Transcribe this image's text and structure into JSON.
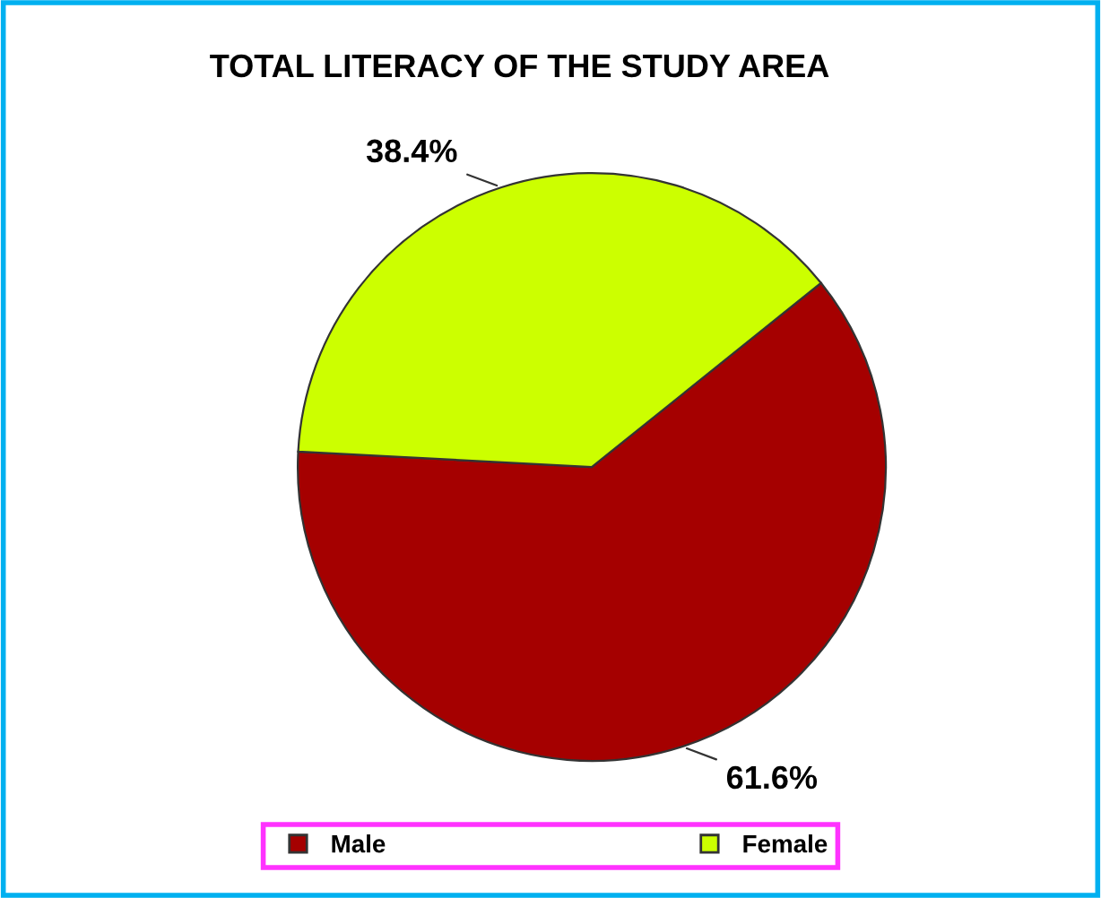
{
  "chart_data": {
    "type": "pie",
    "title": "TOTAL LITERACY OF THE STUDY AREA",
    "categories": [
      "Male",
      "Female"
    ],
    "values": [
      61.6,
      38.4
    ],
    "colors": [
      "#a50000",
      "#ccff00"
    ],
    "value_labels": [
      "61.6%",
      "38.4%"
    ],
    "legend": "bottom"
  }
}
